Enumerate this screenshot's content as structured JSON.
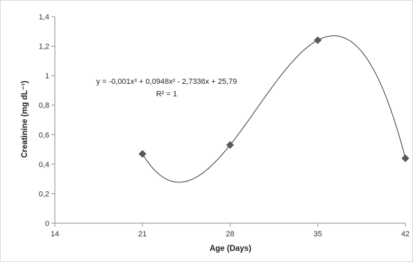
{
  "chart_data": {
    "type": "scatter",
    "title": "",
    "xlabel": "Age (Days)",
    "ylabel": "Creatinine (mg dL⁻¹)",
    "xlim": [
      14,
      42
    ],
    "ylim": [
      0,
      1.4
    ],
    "x_ticks": [
      14,
      21,
      28,
      35,
      42
    ],
    "x_tick_labels": [
      "14",
      "21",
      "28",
      "35",
      "42"
    ],
    "y_ticks": [
      0,
      0.2,
      0.4,
      0.6,
      0.8,
      1.0,
      1.2,
      1.4
    ],
    "y_tick_labels": [
      "0",
      "0,2",
      "0,4",
      "0,6",
      "0,8",
      "1",
      "1,2",
      "1,4"
    ],
    "grid": false,
    "legend": "none",
    "series": [
      {
        "marker": "diamond",
        "color": "#5a5a5a",
        "x": [
          21,
          28,
          35,
          42
        ],
        "y": [
          0.47,
          0.53,
          1.24,
          0.44
        ]
      }
    ],
    "trendline": {
      "type": "polynomial",
      "order": 3,
      "coefficients": [
        -0.001,
        0.0948,
        -2.7336,
        25.79
      ],
      "x_range": [
        21,
        42
      ],
      "color": "#333333",
      "equation_label": "y = -0,001x³ + 0,0948x² - 2,7336x + 25,79",
      "r2_label": "R² = 1"
    }
  }
}
